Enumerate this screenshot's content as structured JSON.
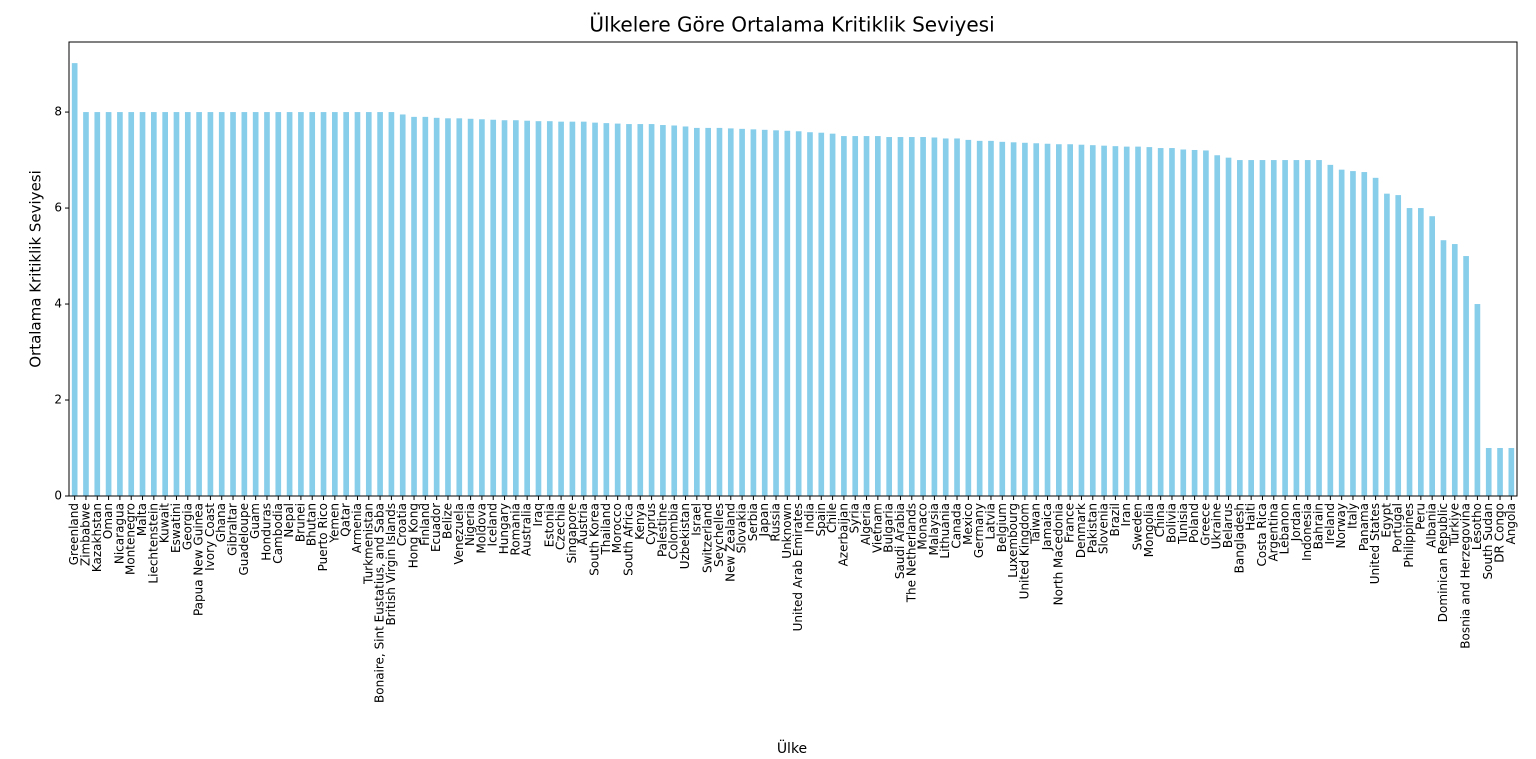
{
  "chart_data": {
    "type": "bar",
    "title": "Ülkelere Göre Ortalama Kritiklik Seviyesi",
    "x_label": "Ülke",
    "y_label": "Ortalama Kritiklik Seviyesi",
    "color": "#87ceeb",
    "categories": [
      "Greenland",
      "Zimbabwe",
      "Kazakhstan",
      "Oman",
      "Nicaragua",
      "Montenegro",
      "Malta",
      "Liechtenstein",
      "Kuwait",
      "Eswatini",
      "Georgia",
      "Papua New Guinea",
      "Ivory Coast",
      "Ghana",
      "Gibraltar",
      "Guadeloupe",
      "Guam",
      "Honduras",
      "Cambodia",
      "Nepal",
      "Brunei",
      "Bhutan",
      "Puerto Rico",
      "Yemen",
      "Qatar",
      "Armenia",
      "Turkmenistan",
      "Bonaire, Sint Eustatius, and Saba",
      "British Virgin Islands",
      "Croatia",
      "Hong Kong",
      "Finland",
      "Ecuador",
      "Belize",
      "Venezuela",
      "Nigeria",
      "Moldova",
      "Iceland",
      "Hungary",
      "Romania",
      "Australia",
      "Iraq",
      "Estonia",
      "Czechia",
      "Singapore",
      "Austria",
      "South Korea",
      "Thailand",
      "Morocco",
      "South Africa",
      "Kenya",
      "Cyprus",
      "Palestine",
      "Colombia",
      "Uzbekistan",
      "Israel",
      "Switzerland",
      "Seychelles",
      "New Zealand",
      "Slovakia",
      "Serbia",
      "Japan",
      "Russia",
      "Unknown",
      "United Arab Emirates",
      "India",
      "Spain",
      "Chile",
      "Azerbaijan",
      "Syria",
      "Algeria",
      "Vietnam",
      "Bulgaria",
      "Saudi Arabia",
      "The Netherlands",
      "Monaco",
      "Malaysia",
      "Lithuania",
      "Canada",
      "Mexico",
      "Germany",
      "Latvia",
      "Belgium",
      "Luxembourg",
      "United Kingdom",
      "Taiwan",
      "Jamaica",
      "North Macedonia",
      "France",
      "Denmark",
      "Pakistan",
      "Slovenia",
      "Brazil",
      "Iran",
      "Sweden",
      "Mongolia",
      "China",
      "Bolivia",
      "Tunisia",
      "Poland",
      "Greece",
      "Ukraine",
      "Belarus",
      "Bangladesh",
      "Haiti",
      "Costa Rica",
      "Argentina",
      "Lebanon",
      "Jordan",
      "Indonesia",
      "Bahrain",
      "Ireland",
      "Norway",
      "Italy",
      "Panama",
      "United States",
      "Egypt",
      "Portugal",
      "Philippines",
      "Peru",
      "Albania",
      "Dominican Republic",
      "Türkiye",
      "Bosnia and Herzegovina",
      "Lesotho",
      "South Sudan",
      "DR Congo",
      "Angola"
    ],
    "values": [
      9.02,
      8,
      8,
      8,
      8,
      8,
      8,
      8,
      8,
      8,
      8,
      8,
      8,
      8,
      8,
      8,
      8,
      8,
      8,
      8,
      8,
      8,
      8,
      8,
      8,
      8,
      8,
      8,
      8,
      7.95,
      7.9,
      7.9,
      7.88,
      7.87,
      7.87,
      7.86,
      7.85,
      7.84,
      7.83,
      7.83,
      7.82,
      7.81,
      7.81,
      7.8,
      7.8,
      7.8,
      7.78,
      7.77,
      7.76,
      7.75,
      7.75,
      7.75,
      7.73,
      7.72,
      7.7,
      7.67,
      7.67,
      7.67,
      7.66,
      7.65,
      7.64,
      7.63,
      7.62,
      7.61,
      7.6,
      7.58,
      7.57,
      7.55,
      7.5,
      7.5,
      7.5,
      7.5,
      7.48,
      7.48,
      7.48,
      7.48,
      7.47,
      7.45,
      7.45,
      7.42,
      7.4,
      7.4,
      7.38,
      7.37,
      7.36,
      7.35,
      7.34,
      7.33,
      7.33,
      7.32,
      7.31,
      7.3,
      7.29,
      7.28,
      7.28,
      7.27,
      7.25,
      7.25,
      7.22,
      7.21,
      7.2,
      7.1,
      7.05,
      7,
      7,
      7,
      7,
      7,
      7,
      7,
      7,
      6.9,
      6.8,
      6.77,
      6.75,
      6.63,
      6.3,
      6.27,
      6,
      6,
      5.83,
      5.33,
      5.25,
      5,
      4,
      1,
      1,
      1
    ],
    "ylim": [
      0,
      9.46
    ],
    "yticks": [
      0,
      2,
      4,
      6,
      8
    ]
  }
}
